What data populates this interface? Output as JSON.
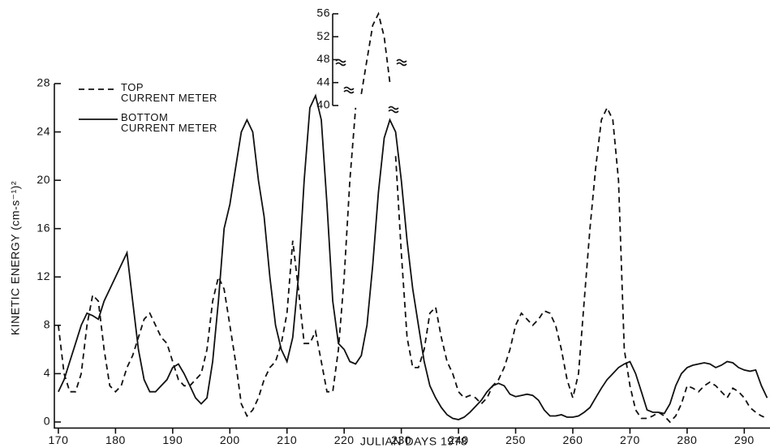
{
  "chart_data": {
    "type": "line",
    "x_label": "JULIAN DAYS 1978",
    "y_label": "KINETIC ENERGY (cm-s⁻¹)²",
    "x": [
      170,
      171,
      172,
      173,
      174,
      175,
      176,
      177,
      178,
      179,
      180,
      181,
      182,
      183,
      184,
      185,
      186,
      187,
      188,
      189,
      190,
      191,
      192,
      193,
      194,
      195,
      196,
      197,
      198,
      199,
      200,
      201,
      202,
      203,
      204,
      205,
      206,
      207,
      208,
      209,
      210,
      211,
      212,
      213,
      214,
      215,
      216,
      217,
      218,
      219,
      220,
      221,
      222,
      223,
      224,
      225,
      226,
      227,
      228,
      229,
      230,
      231,
      232,
      233,
      234,
      235,
      236,
      237,
      238,
      239,
      240,
      241,
      242,
      243,
      244,
      245,
      246,
      247,
      248,
      249,
      250,
      251,
      252,
      253,
      254,
      255,
      256,
      257,
      258,
      259,
      260,
      261,
      262,
      263,
      264,
      265,
      266,
      267,
      268,
      269,
      270,
      271,
      272,
      273,
      274,
      275,
      276,
      277,
      278,
      279,
      280,
      281,
      282,
      283,
      284,
      285,
      286,
      287,
      288,
      289,
      290,
      291,
      292,
      293,
      294
    ],
    "series": [
      {
        "name": "TOP\nCURRENT METER",
        "color": "#111111",
        "dashed": true,
        "values": [
          8,
          4,
          2.5,
          2.5,
          4,
          8,
          10.5,
          10,
          6,
          3,
          2.5,
          3,
          4.5,
          5.5,
          7,
          8.5,
          9,
          8,
          7,
          6.5,
          5,
          3.5,
          3,
          3,
          3.5,
          4,
          6,
          10,
          12,
          11,
          8,
          5,
          1.5,
          0.5,
          1,
          2,
          3.5,
          4.5,
          5,
          6.5,
          9,
          15,
          11,
          6.5,
          6.5,
          7.5,
          5,
          2.5,
          2.5,
          6,
          12,
          20,
          26,
          42,
          48,
          54,
          56,
          52,
          44,
          22,
          14,
          7,
          4.5,
          4.5,
          6,
          9,
          9.5,
          7,
          5,
          4,
          2.5,
          2,
          2.2,
          2,
          1.5,
          2,
          3,
          3.5,
          4.5,
          6,
          8,
          9,
          8.5,
          8,
          8.5,
          9.2,
          9,
          8,
          6,
          3.5,
          2,
          4,
          10,
          16,
          21,
          25,
          26,
          25,
          20,
          6,
          3,
          1,
          0.3,
          0.3,
          0.5,
          0.8,
          0.5,
          0,
          0.5,
          1.5,
          3,
          2.8,
          2.5,
          3,
          3.3,
          3,
          2.5,
          2,
          2.8,
          2.5,
          2,
          1.2,
          0.8,
          0.5,
          0.3
        ]
      },
      {
        "name": "BOTTOM\nCURRENT METER",
        "color": "#111111",
        "dashed": false,
        "values": [
          2.5,
          3.5,
          5,
          6.5,
          8,
          9,
          8.8,
          8.5,
          10,
          11,
          12,
          13,
          14,
          10,
          6,
          3.5,
          2.5,
          2.5,
          3,
          3.5,
          4.5,
          4.8,
          4,
          3,
          2,
          1.5,
          2,
          5,
          10,
          16,
          18,
          21,
          24,
          25,
          24,
          20,
          17,
          12,
          8,
          6,
          5,
          7,
          12,
          20,
          26,
          27,
          25,
          18,
          10,
          6.5,
          6,
          5,
          4.8,
          5.5,
          8,
          13,
          19,
          23.5,
          25,
          24,
          20,
          15,
          11,
          8,
          5,
          3,
          2,
          1.2,
          0.6,
          0.3,
          0.2,
          0.4,
          0.8,
          1.3,
          1.8,
          2.5,
          3,
          3.2,
          3,
          2.3,
          2.1,
          2.2,
          2.3,
          2.2,
          1.8,
          1,
          0.5,
          0.5,
          0.6,
          0.4,
          0.4,
          0.5,
          0.8,
          1.2,
          2,
          2.8,
          3.5,
          4,
          4.5,
          4.8,
          5,
          4,
          2.5,
          1,
          0.8,
          0.8,
          0.7,
          1.5,
          3,
          4,
          4.5,
          4.7,
          4.8,
          4.9,
          4.8,
          4.5,
          4.7,
          5,
          4.9,
          4.5,
          4.3,
          4.2,
          4.3,
          3,
          2
        ]
      }
    ],
    "xlim": [
      169.3,
      294.5
    ],
    "xticks": [
      170,
      180,
      190,
      200,
      210,
      220,
      230,
      240,
      250,
      260,
      270,
      280,
      290
    ],
    "ylim": [
      -0.5,
      28
    ],
    "yticks": [
      0,
      4,
      8,
      12,
      16,
      20,
      24,
      28
    ],
    "y2lim": [
      40,
      56
    ],
    "y2ticks": [
      40,
      44,
      48,
      52,
      56
    ],
    "broken_axis": true
  }
}
